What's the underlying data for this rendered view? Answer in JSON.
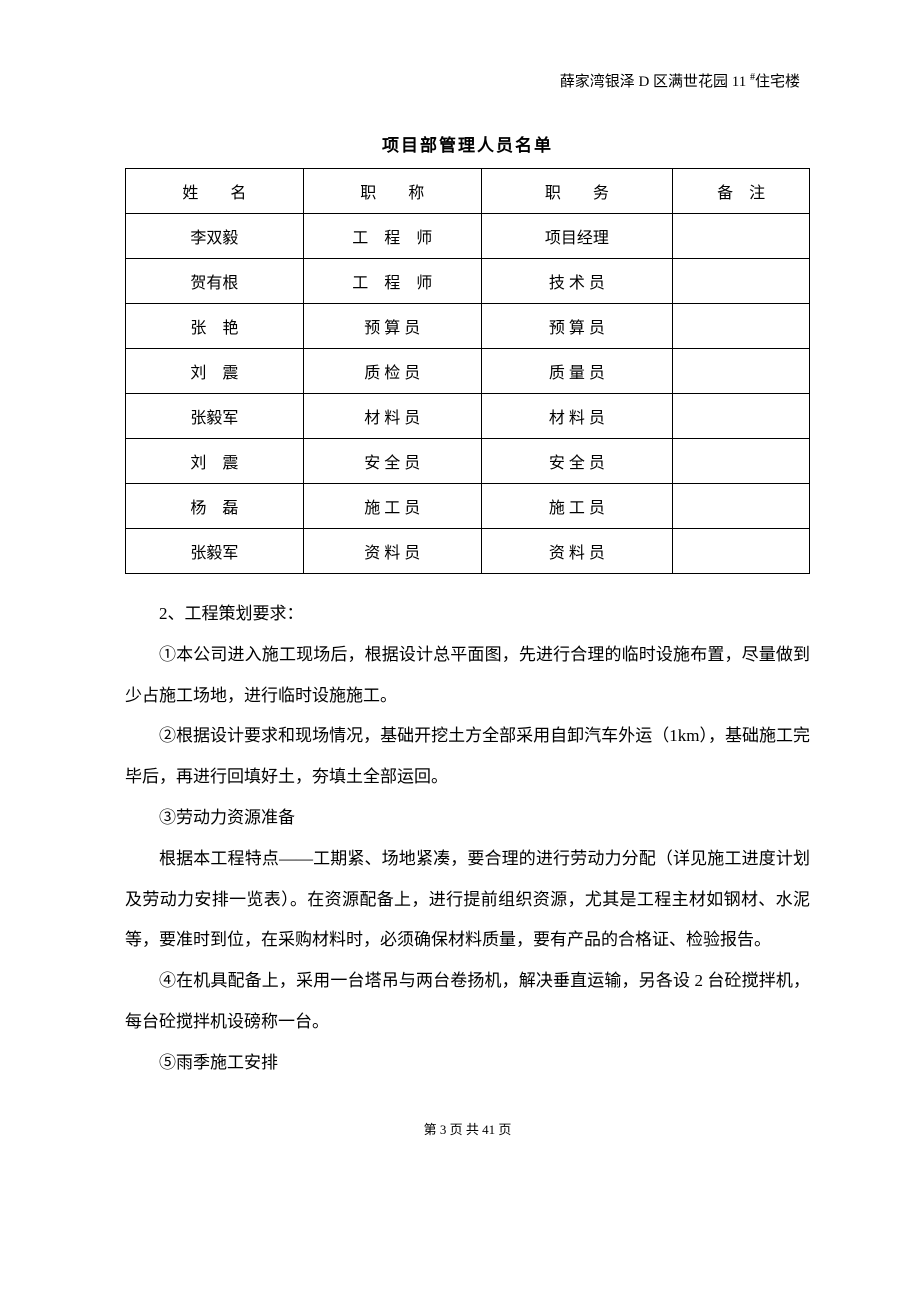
{
  "header": {
    "text_before": "薛家湾银泽 D 区满世花园 11 ",
    "sup": "#",
    "text_after": "住宅楼"
  },
  "table": {
    "title": "项目部管理人员名单",
    "headers": {
      "name": "姓　　名",
      "title": "职　　称",
      "position": "职　　务",
      "note": "备　注"
    },
    "rows": [
      {
        "name": "李双毅",
        "title": "工　程　师",
        "position": "项目经理",
        "note": ""
      },
      {
        "name": "贺有根",
        "title": "工　程　师",
        "position": "技 术 员",
        "note": ""
      },
      {
        "name": "张　艳",
        "title": "预 算 员",
        "position": "预 算 员",
        "note": ""
      },
      {
        "name": "刘　震",
        "title": "质 检 员",
        "position": "质 量 员",
        "note": ""
      },
      {
        "name": "张毅军",
        "title": "材 料 员",
        "position": "材 料 员",
        "note": ""
      },
      {
        "name": "刘　震",
        "title": "安 全 员",
        "position": "安 全 员",
        "note": ""
      },
      {
        "name": "杨　磊",
        "title": "施 工 员",
        "position": "施 工 员",
        "note": ""
      },
      {
        "name": "张毅军",
        "title": "资 料 员",
        "position": "资 料 员",
        "note": ""
      }
    ]
  },
  "paragraphs": {
    "p1": "2、工程策划要求：",
    "p2": "①本公司进入施工现场后，根据设计总平面图，先进行合理的临时设施布置，尽量做到少占施工场地，进行临时设施施工。",
    "p3": "②根据设计要求和现场情况，基础开挖土方全部采用自卸汽车外运（1km），基础施工完毕后，再进行回填好土，夯填土全部运回。",
    "p4": "③劳动力资源准备",
    "p5": "根据本工程特点——工期紧、场地紧凑，要合理的进行劳动力分配（详见施工进度计划及劳动力安排一览表）。在资源配备上，进行提前组织资源，尤其是工程主材如钢材、水泥等，要准时到位，在采购材料时，必须确保材料质量，要有产品的合格证、检验报告。",
    "p6": "④在机具配备上，采用一台塔吊与两台卷扬机，解决垂直运输，另各设 2 台砼搅拌机，每台砼搅拌机设磅称一台。",
    "p7": "⑤雨季施工安排"
  },
  "footer": {
    "text": "第 3 页 共 41 页"
  }
}
